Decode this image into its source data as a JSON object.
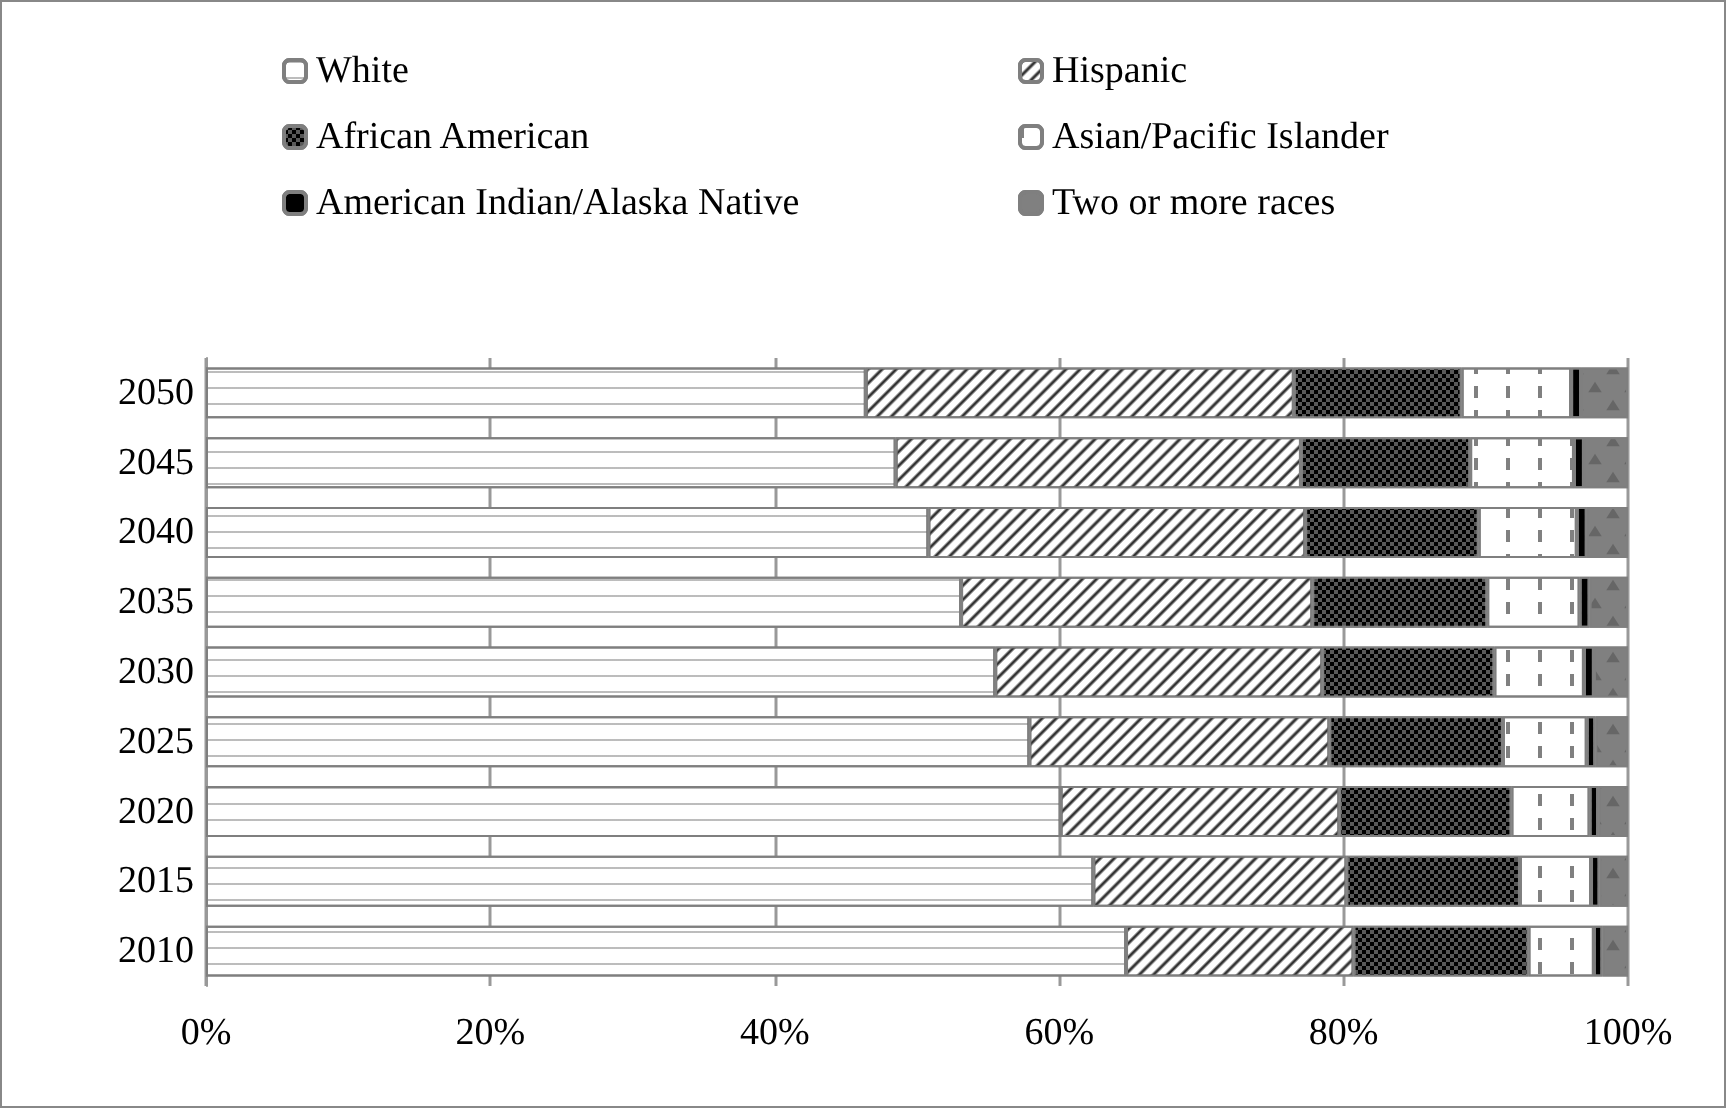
{
  "chart_data": {
    "type": "bar",
    "orientation": "horizontal",
    "stacked": true,
    "categories": [
      "2050",
      "2045",
      "2040",
      "2035",
      "2030",
      "2025",
      "2020",
      "2015",
      "2010"
    ],
    "series": [
      {
        "name": "White",
        "color": "#ffffff",
        "values": [
          46.4,
          48.5,
          50.8,
          53.1,
          55.5,
          57.9,
          60.1,
          62.4,
          64.7
        ]
      },
      {
        "name": "Hispanic",
        "color": "#ffffff",
        "values": [
          30.1,
          28.5,
          26.5,
          24.7,
          23.0,
          21.1,
          19.6,
          17.8,
          16.0
        ]
      },
      {
        "name": "African American",
        "color": "#595959",
        "values": [
          11.8,
          11.9,
          12.2,
          12.3,
          12.1,
          12.2,
          12.1,
          12.2,
          12.3
        ]
      },
      {
        "name": "Asian/Pacific Islander",
        "color": "#ffffff",
        "values": [
          7.7,
          7.3,
          6.9,
          6.5,
          6.3,
          5.9,
          5.5,
          5.0,
          4.6
        ]
      },
      {
        "name": "American Indian/Alaska Native",
        "color": "#000000",
        "values": [
          0.7,
          0.7,
          0.7,
          0.7,
          0.7,
          0.6,
          0.6,
          0.6,
          0.6
        ]
      },
      {
        "name": "Two or more races",
        "color": "#808080",
        "values": [
          3.3,
          3.1,
          2.9,
          2.7,
          2.4,
          2.3,
          2.1,
          2.0,
          1.8
        ]
      }
    ],
    "xlim": [
      0,
      100
    ],
    "xticks": [
      {
        "value": 0,
        "label": "0%"
      },
      {
        "value": 20,
        "label": "20%"
      },
      {
        "value": 40,
        "label": "40%"
      },
      {
        "value": 60,
        "label": "60%"
      },
      {
        "value": 80,
        "label": "80%"
      },
      {
        "value": 100,
        "label": "100%"
      }
    ],
    "grid": "x",
    "legend": "top"
  }
}
